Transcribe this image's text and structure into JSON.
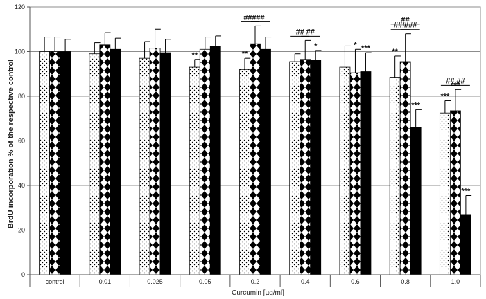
{
  "chart_data": {
    "type": "bar",
    "xlabel": "Curcumin [µg/ml]",
    "ylabel": "BrdU incorporation % of the respective control",
    "ylim": [
      0,
      120
    ],
    "yticks": [
      "0",
      "20",
      "40",
      "60",
      "80",
      "100",
      "120"
    ],
    "grid": true,
    "categories": [
      "control",
      "0.01",
      "0.025",
      "0.05",
      "0.2",
      "0.4",
      "0.6",
      "0.8",
      "1.0"
    ],
    "series": [
      {
        "pattern": "dots",
        "values": [
          100,
          99,
          97,
          93,
          92,
          95.5,
          93,
          88.5,
          72.5
        ],
        "errors": [
          6.5,
          5,
          7.5,
          3.5,
          5,
          3.5,
          9.5,
          9.5,
          5.5
        ],
        "annotations": [
          "",
          "",
          "",
          "**",
          "**",
          "",
          "",
          "**",
          "***"
        ]
      },
      {
        "pattern": "diamonds",
        "values": [
          100,
          103,
          101.5,
          101,
          103.5,
          96.5,
          90.5,
          95.5,
          73.5
        ],
        "errors": [
          6.5,
          5.5,
          8.5,
          5.5,
          8,
          8.5,
          10.5,
          12.5,
          9.5
        ],
        "annotations": [
          "",
          "",
          "",
          "",
          "",
          "",
          "*",
          "",
          "***"
        ]
      },
      {
        "pattern": "solid",
        "values": [
          100,
          101,
          99.5,
          102.5,
          101,
          96,
          91,
          66,
          27
        ],
        "errors": [
          5.5,
          5,
          6,
          4.5,
          5.5,
          4.5,
          8.5,
          8,
          8.5
        ],
        "annotations": [
          "",
          "",
          "",
          "",
          "",
          "*",
          "***",
          "***",
          "***"
        ]
      }
    ],
    "brackets": [
      {
        "category": "0.2",
        "from": 0,
        "to": 1,
        "label": "###"
      },
      {
        "category": "0.2",
        "from": 1,
        "to": 2,
        "label": "##"
      },
      {
        "category": "0.4",
        "from": 0,
        "to": 1,
        "label": "##"
      },
      {
        "category": "0.4",
        "from": 1,
        "to": 2,
        "label": "##"
      },
      {
        "category": "0.8",
        "from": 0,
        "to": 1,
        "label": "###"
      },
      {
        "category": "0.8",
        "from": 1,
        "to": 2,
        "label": "###"
      },
      {
        "category": "0.8",
        "from": 0,
        "to": 2,
        "label": "##"
      },
      {
        "category": "1.0",
        "from": 0,
        "to": 1,
        "label": "##"
      },
      {
        "category": "1.0",
        "from": 1,
        "to": 2,
        "label": "##"
      }
    ]
  }
}
